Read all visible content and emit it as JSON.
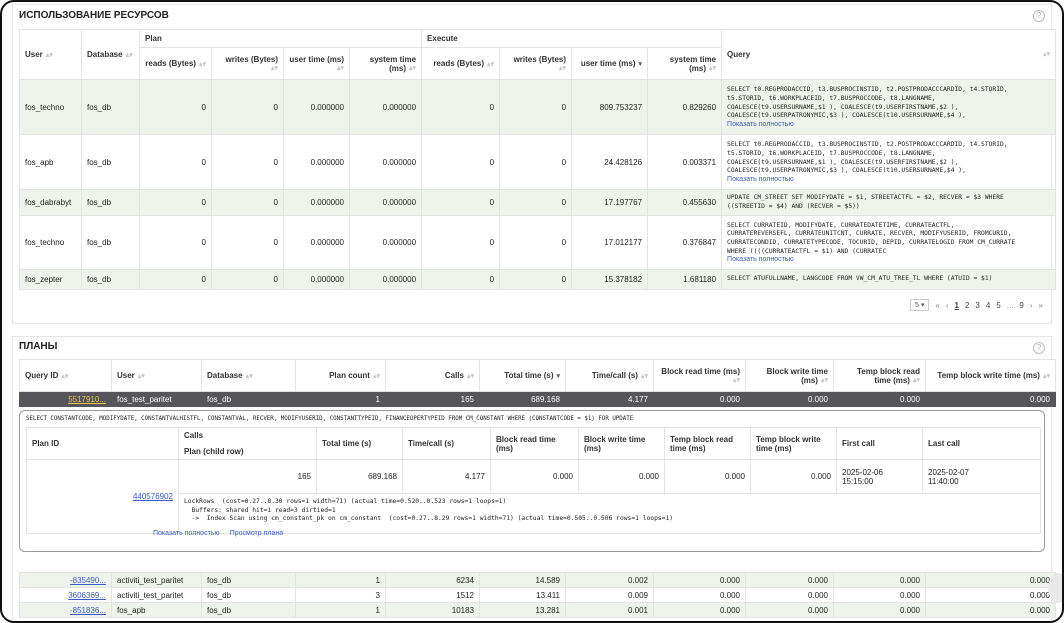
{
  "resources": {
    "title": "ИСПОЛЬЗОВАНИЕ РЕСУРСОВ",
    "group_plan": "Plan",
    "group_execute": "Execute",
    "col_user": "User",
    "col_database": "Database",
    "col_query": "Query",
    "sub_cols": [
      "reads (Bytes)",
      "writes (Bytes)",
      "user time (ms)",
      "system time (ms)",
      "reads (Bytes)",
      "writes (Bytes)",
      "user time (ms)",
      "system time (ms)"
    ],
    "show_full": "Показать полностью",
    "rows": [
      {
        "user": "fos_techno",
        "db": "fos_db",
        "p_reads": "0",
        "p_writes": "0",
        "p_utime": "0.000000",
        "p_stime": "0.000000",
        "e_reads": "0",
        "e_writes": "0",
        "e_utime": "809.753237",
        "e_stime": "0.829260",
        "query": "SELECT t0.REGPRODACCID, t3.BUSPROCINSTID, t2.POSTPRODACCCARDID, t4.STORID,\nt5.STORID, t6.WORKPLACEID, t7.BUSPROCCODE, t8.LANGNAME,\nCOALESCE(t9.USERSURNAME,$1 ), COALESCE(t9.USERFIRSTNAME,$2 ),\nCOALESCE(t9.USERPATRONYMIC,$3 ), COALESCE(t10.USERSURNAME,$4 ),",
        "more": true,
        "green": true
      },
      {
        "user": "fos_apb",
        "db": "fos_db",
        "p_reads": "0",
        "p_writes": "0",
        "p_utime": "0.000000",
        "p_stime": "0.000000",
        "e_reads": "0",
        "e_writes": "0",
        "e_utime": "24.428126",
        "e_stime": "0.003371",
        "query": "SELECT t0.REGPRODACCID, t3.BUSPROCINSTID, t2.POSTPRODACCCARDID, t4.STORID,\nt5.STORID, t6.WORKPLACEID, t7.BUSPROCCODE, t8.LANGNAME,\nCOALESCE(t9.USERSURNAME,$1 ), COALESCE(t9.USERFIRSTNAME,$2 ),\nCOALESCE(t9.USERPATRONYMIC,$3 ), COALESCE(t10.USERSURNAME,$4 ),",
        "more": true,
        "green": false
      },
      {
        "user": "fos_dabrabyt",
        "db": "fos_db",
        "p_reads": "0",
        "p_writes": "0",
        "p_utime": "0.000000",
        "p_stime": "0.000000",
        "e_reads": "0",
        "e_writes": "0",
        "e_utime": "17.197767",
        "e_stime": "0.455630",
        "query": "UPDATE CM_STREET SET MODIFYDATE = $1, STREETACTFL = $2, RECVER = $3 WHERE\n((STREETID = $4) AND (RECVER = $5))",
        "more": false,
        "green": true
      },
      {
        "user": "fos_techno",
        "db": "fos_db",
        "p_reads": "0",
        "p_writes": "0",
        "p_utime": "0.000000",
        "p_stime": "0.000000",
        "e_reads": "0",
        "e_writes": "0",
        "e_utime": "17.012177",
        "e_stime": "0.376847",
        "query": "SELECT CURRATEID, MODIFYDATE, CURRATEDATETIME, CURRATEACTFL,\nCURRATEREVERSEFL, CURRATEUNITCNT, CURRATE, RECVER, MODIFYUSERID, FROMCURID,\nCURRATECONDID, CURRATETYPECODE, TOCURID, DEPID, CURRATELOGID FROM CM_CURRATE\nWHERE ((((CURRATEACTFL = $1) AND (CURRATEC",
        "more": true,
        "green": false
      },
      {
        "user": "fos_zepter",
        "db": "fos_db",
        "p_reads": "0",
        "p_writes": "0",
        "p_utime": "0.000000",
        "p_stime": "0.000000",
        "e_reads": "0",
        "e_writes": "0",
        "e_utime": "15.378182",
        "e_stime": "1.681180",
        "query": "SELECT ATUFULLNAME, LANGCODE FROM VW_CM_ATU_TREE_TL WHERE (ATUID = $1)",
        "more": false,
        "green": true
      }
    ],
    "pager": {
      "page_size": "5",
      "pages": [
        "1",
        "2",
        "3",
        "4",
        "5",
        "...",
        "9"
      ],
      "first": "«",
      "prev": "‹",
      "next": "›",
      "last": "»"
    }
  },
  "plans": {
    "title": "ПЛАНЫ",
    "cols": [
      "Query ID",
      "User",
      "Database",
      "Plan count",
      "Calls",
      "Total time (s)",
      "Time/call (s)",
      "Block read time (ms)",
      "Block write time (ms)",
      "Temp block read time (ms)",
      "Temp block write time (ms)"
    ],
    "selected": {
      "qid": "5517910...",
      "user": "fos_test_paritet",
      "db": "fos_db",
      "plan_count": "1",
      "calls": "165",
      "total": "689.168",
      "per_call": "4.177",
      "br": "0.000",
      "bw": "0.000",
      "tbr": "0.000",
      "tbw": "0.000"
    },
    "detail": {
      "query": "SELECT CONSTANTCODE, MODIFYDATE, CONSTANTVALHISTFL, CONSTANTVAL, RECVER, MODIFYUSERID, CONSTANTTYPEID, FINANCEOPERTYPEID FROM CM_CONSTANT WHERE (CONSTANTCODE = $1) FOR UPDATE",
      "cols": [
        "Plan ID",
        "Calls",
        "Total time (s)",
        "Time/call (s)",
        "Block read time (ms)",
        "Block write time (ms)",
        "Temp block read time (ms)",
        "Temp block write time (ms)",
        "First call",
        "Last call"
      ],
      "child_label": "Plan (child row)",
      "row": {
        "calls": "165",
        "total": "689.168",
        "per_call": "4.177",
        "br": "0.000",
        "bw": "0.000",
        "tbr": "0.000",
        "tbw": "0.000",
        "first": "2025-02-06\n15:15:00",
        "last": "2025-02-07\n11:40:00"
      },
      "plan_id": "440576902",
      "plan_text": "LockRows  (cost=0.27..8.30 rows=1 width=71) (actual time=0.520..0.523 rows=1 loops=1)\n  Buffers: shared hit=1 read=3 dirtied=1\n  ->  Index Scan using cm_constant_pk on cm_constant  (cost=0.27..8.29 rows=1 width=71) (actual time=0.505..0.506 rows=1 loops=1)",
      "show_full": "Показать полностью",
      "view_plan": "Просмотр плана"
    },
    "rows": [
      {
        "qid": "-835490...",
        "user": "activiti_test_paritet",
        "db": "fos_db",
        "plan_count": "1",
        "calls": "6234",
        "total": "14.589",
        "per_call": "0.002",
        "br": "0.000",
        "bw": "0.000",
        "tbr": "0.000",
        "tbw": "0.000",
        "green": true
      },
      {
        "qid": "3606369...",
        "user": "activiti_test_paritet",
        "db": "fos_db",
        "plan_count": "3",
        "calls": "1512",
        "total": "13.411",
        "per_call": "0.009",
        "br": "0.000",
        "bw": "0.000",
        "tbr": "0.000",
        "tbw": "0.000",
        "green": false
      },
      {
        "qid": "-851836...",
        "user": "fos_apb",
        "db": "fos_db",
        "plan_count": "1",
        "calls": "10183",
        "total": "13.281",
        "per_call": "0.001",
        "br": "0.000",
        "bw": "0.000",
        "tbr": "0.000",
        "tbw": "0.000",
        "green": true
      }
    ]
  }
}
